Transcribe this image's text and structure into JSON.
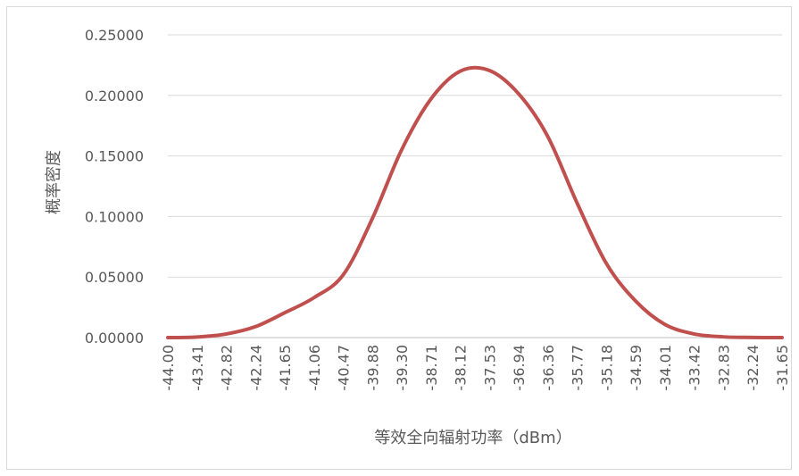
{
  "chart_data": {
    "type": "line",
    "title": "",
    "xlabel": "等效全向辐射功率（dBm）",
    "ylabel": "概率密度",
    "x_tick_labels": [
      "-44.00",
      "-43.41",
      "-42.82",
      "-42.24",
      "-41.65",
      "-41.06",
      "-40.47",
      "-39.88",
      "-39.30",
      "-38.71",
      "-38.12",
      "-37.53",
      "-36.94",
      "-36.36",
      "-35.77",
      "-35.18",
      "-34.59",
      "-34.01",
      "-33.42",
      "-32.83",
      "-32.24",
      "-31.65"
    ],
    "y_tick_labels": [
      "0.25000",
      "0.20000",
      "0.15000",
      "0.10000",
      "0.05000",
      "0.00000"
    ],
    "ylim": [
      0,
      0.25
    ],
    "xlim": [
      -44.0,
      -31.65
    ],
    "grid": true,
    "legend": false,
    "series": [
      {
        "color": "#c0504d",
        "x": [
          -44.0,
          -43.41,
          -42.82,
          -42.24,
          -41.65,
          -41.06,
          -40.47,
          -39.88,
          -39.3,
          -38.71,
          -38.12,
          -37.53,
          -36.94,
          -36.36,
          -35.77,
          -35.18,
          -34.59,
          -34.01,
          -33.42,
          -32.83,
          -32.24,
          -31.65
        ],
        "y": [
          0.0,
          0.0005,
          0.003,
          0.009,
          0.0205,
          0.033,
          0.052,
          0.099,
          0.155,
          0.197,
          0.22,
          0.2205,
          0.201,
          0.166,
          0.111,
          0.061,
          0.03,
          0.011,
          0.003,
          0.0006,
          0.0001,
          0.0
        ]
      }
    ]
  }
}
